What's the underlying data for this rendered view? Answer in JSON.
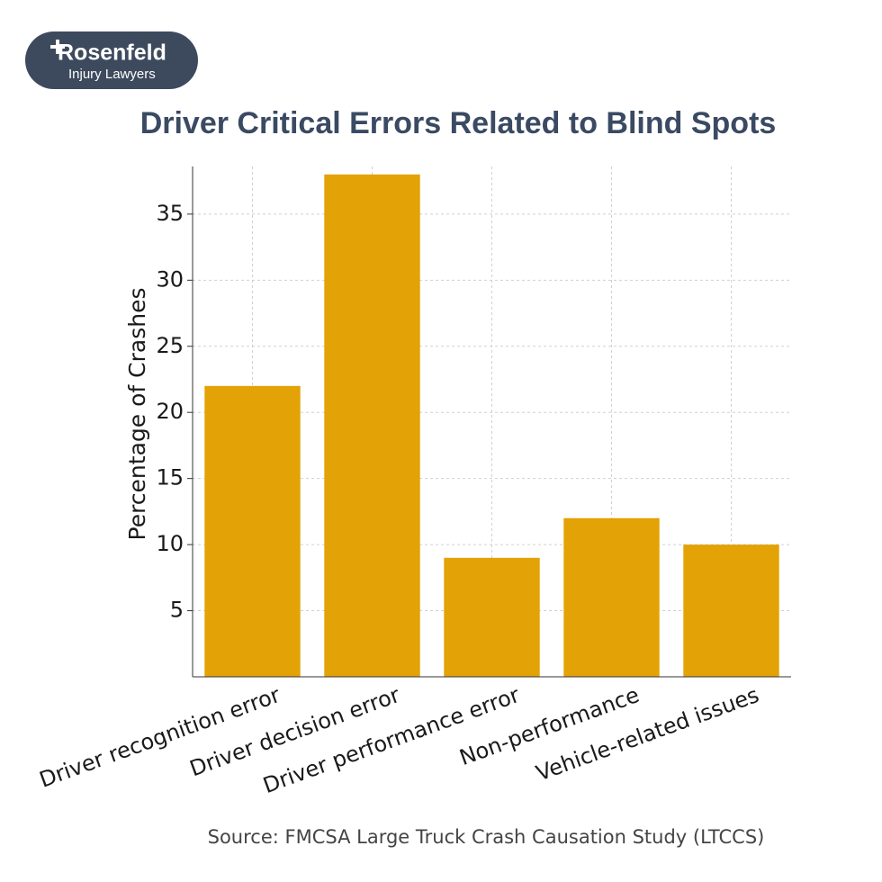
{
  "logo": {
    "name": "Rosenfeld",
    "tagline": "Injury Lawyers"
  },
  "chart_data": {
    "type": "bar",
    "title": "Driver Critical Errors Related to Blind Spots",
    "y_label": "Percentage of Crashes",
    "categories": [
      "Driver recognition error",
      "Driver decision error",
      "Driver performance error",
      "Non-performance",
      "Vehicle-related issues"
    ],
    "values": [
      22,
      38,
      9,
      12,
      10
    ],
    "color": "#e3a205",
    "ylim": [
      0,
      38.6
    ],
    "yticks": [
      5,
      10,
      15,
      20,
      25,
      30,
      35
    ],
    "grid": true,
    "source": "Source: FMCSA Large Truck Crash Causation Study (LTCCS)"
  }
}
